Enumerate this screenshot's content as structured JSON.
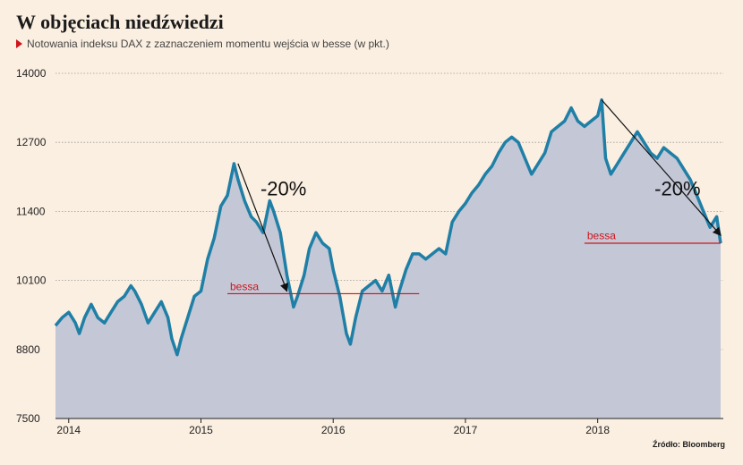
{
  "title": "W objęciach niedźwiedzi",
  "subtitle": "Notowania indeksu DAX z zaznaczeniem momentu wejścia w besse (w pkt.)",
  "source": "Źródło: Bloomberg",
  "colors": {
    "line": "#1f7fa6",
    "area": "#c3c7d6",
    "bessa": "#d0141b",
    "grid": "#9a9a9a",
    "background": "#fbefe1"
  },
  "chart_data": {
    "type": "area",
    "title": "W objęciach niedźwiedzi",
    "ylabel": "",
    "xlabel": "",
    "ylim": [
      7500,
      14000
    ],
    "xlim": [
      2013.9,
      2018.95
    ],
    "grid": "horizontal dashed",
    "y_ticks": [
      7500,
      8800,
      10100,
      11400,
      12700,
      14000
    ],
    "x_ticks": [
      "2014",
      "2015",
      "2016",
      "2017",
      "2018"
    ],
    "x_tick_values": [
      2014,
      2015,
      2016,
      2017,
      2018
    ],
    "series": [
      {
        "values": [
          [
            2013.9,
            9250
          ],
          [
            2013.95,
            9400
          ],
          [
            2014.0,
            9500
          ],
          [
            2014.05,
            9300
          ],
          [
            2014.08,
            9100
          ],
          [
            2014.12,
            9400
          ],
          [
            2014.17,
            9650
          ],
          [
            2014.22,
            9400
          ],
          [
            2014.27,
            9300
          ],
          [
            2014.32,
            9500
          ],
          [
            2014.37,
            9700
          ],
          [
            2014.42,
            9800
          ],
          [
            2014.47,
            10000
          ],
          [
            2014.5,
            9900
          ],
          [
            2014.55,
            9650
          ],
          [
            2014.6,
            9300
          ],
          [
            2014.65,
            9500
          ],
          [
            2014.7,
            9700
          ],
          [
            2014.75,
            9400
          ],
          [
            2014.78,
            9000
          ],
          [
            2014.82,
            8700
          ],
          [
            2014.85,
            9000
          ],
          [
            2014.9,
            9400
          ],
          [
            2014.95,
            9800
          ],
          [
            2015.0,
            9900
          ],
          [
            2015.05,
            10500
          ],
          [
            2015.1,
            10900
          ],
          [
            2015.15,
            11500
          ],
          [
            2015.2,
            11700
          ],
          [
            2015.25,
            12300
          ],
          [
            2015.28,
            12000
          ],
          [
            2015.33,
            11600
          ],
          [
            2015.38,
            11300
          ],
          [
            2015.42,
            11200
          ],
          [
            2015.47,
            11000
          ],
          [
            2015.52,
            11600
          ],
          [
            2015.55,
            11400
          ],
          [
            2015.6,
            11000
          ],
          [
            2015.65,
            10200
          ],
          [
            2015.7,
            9600
          ],
          [
            2015.73,
            9800
          ],
          [
            2015.78,
            10200
          ],
          [
            2015.82,
            10700
          ],
          [
            2015.87,
            11000
          ],
          [
            2015.92,
            10800
          ],
          [
            2015.97,
            10700
          ],
          [
            2016.0,
            10300
          ],
          [
            2016.05,
            9800
          ],
          [
            2016.1,
            9100
          ],
          [
            2016.13,
            8900
          ],
          [
            2016.17,
            9400
          ],
          [
            2016.22,
            9900
          ],
          [
            2016.27,
            10000
          ],
          [
            2016.32,
            10100
          ],
          [
            2016.37,
            9900
          ],
          [
            2016.42,
            10200
          ],
          [
            2016.47,
            9600
          ],
          [
            2016.5,
            9900
          ],
          [
            2016.55,
            10300
          ],
          [
            2016.6,
            10600
          ],
          [
            2016.65,
            10600
          ],
          [
            2016.7,
            10500
          ],
          [
            2016.75,
            10600
          ],
          [
            2016.8,
            10700
          ],
          [
            2016.85,
            10600
          ],
          [
            2016.9,
            11200
          ],
          [
            2016.95,
            11400
          ],
          [
            2017.0,
            11550
          ],
          [
            2017.05,
            11750
          ],
          [
            2017.1,
            11900
          ],
          [
            2017.15,
            12100
          ],
          [
            2017.2,
            12250
          ],
          [
            2017.25,
            12500
          ],
          [
            2017.3,
            12700
          ],
          [
            2017.35,
            12800
          ],
          [
            2017.4,
            12700
          ],
          [
            2017.45,
            12400
          ],
          [
            2017.5,
            12100
          ],
          [
            2017.55,
            12300
          ],
          [
            2017.6,
            12500
          ],
          [
            2017.65,
            12900
          ],
          [
            2017.7,
            13000
          ],
          [
            2017.75,
            13100
          ],
          [
            2017.8,
            13350
          ],
          [
            2017.85,
            13100
          ],
          [
            2017.9,
            13000
          ],
          [
            2017.95,
            13100
          ],
          [
            2018.0,
            13200
          ],
          [
            2018.03,
            13500
          ],
          [
            2018.06,
            12400
          ],
          [
            2018.1,
            12100
          ],
          [
            2018.15,
            12300
          ],
          [
            2018.2,
            12500
          ],
          [
            2018.25,
            12700
          ],
          [
            2018.3,
            12900
          ],
          [
            2018.35,
            12700
          ],
          [
            2018.4,
            12500
          ],
          [
            2018.45,
            12400
          ],
          [
            2018.5,
            12600
          ],
          [
            2018.55,
            12500
          ],
          [
            2018.6,
            12400
          ],
          [
            2018.65,
            12200
          ],
          [
            2018.7,
            12000
          ],
          [
            2018.75,
            11700
          ],
          [
            2018.8,
            11400
          ],
          [
            2018.85,
            11100
          ],
          [
            2018.9,
            11300
          ],
          [
            2018.93,
            10800
          ]
        ]
      }
    ],
    "annotations": [
      {
        "label": "-20%",
        "arrow_from": [
          2015.28,
          12300
        ],
        "arrow_to": [
          2015.65,
          9900
        ],
        "label_at": [
          2015.45,
          11700
        ]
      },
      {
        "label": "-20%",
        "arrow_from": [
          2018.03,
          13500
        ],
        "arrow_to": [
          2018.93,
          10950
        ],
        "label_at": [
          2018.43,
          11700
        ]
      },
      {
        "label": "bessa",
        "line_y": 9850,
        "line_x": [
          2015.2,
          2016.65
        ],
        "label_at": [
          2015.22,
          9920
        ]
      },
      {
        "label": "bessa",
        "line_y": 10800,
        "line_x": [
          2017.9,
          2018.93
        ],
        "label_at": [
          2017.92,
          10880
        ]
      }
    ]
  }
}
